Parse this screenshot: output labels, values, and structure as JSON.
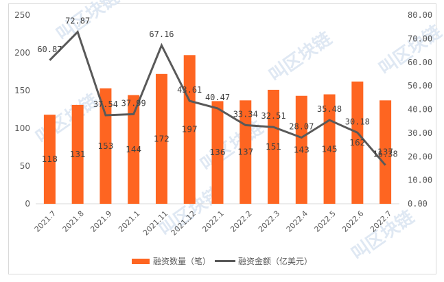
{
  "chart_data": {
    "type": "bar+line",
    "title": "",
    "categories": [
      "2021.7",
      "2021.8",
      "2021.9",
      "2021.1",
      "2021.11",
      "2021.12",
      "2022.1",
      "2022.2",
      "2022.3",
      "2022.4",
      "2022.5",
      "2022.6",
      "2022.7"
    ],
    "series": [
      {
        "name": "融资数量（笔）",
        "type": "bar",
        "axis": "left",
        "color": "#fe6521",
        "values": [
          118,
          131,
          153,
          144,
          172,
          197,
          136,
          137,
          151,
          143,
          145,
          162,
          137
        ]
      },
      {
        "name": "融资金额（亿美元）",
        "type": "line",
        "axis": "right",
        "color": "#595959",
        "values": [
          60.87,
          72.87,
          37.54,
          37.99,
          67.16,
          43.61,
          40.47,
          33.34,
          32.51,
          28.07,
          35.48,
          30.18,
          16.38
        ]
      }
    ],
    "left_axis": {
      "ylim": [
        0,
        250
      ],
      "ticks": [
        "0",
        "50",
        "100",
        "150",
        "200",
        "250"
      ]
    },
    "right_axis": {
      "ylim": [
        0,
        80
      ],
      "ticks": [
        "0.00",
        "10.00",
        "20.00",
        "30.00",
        "40.00",
        "50.00",
        "60.00",
        "70.00",
        "80.00"
      ]
    },
    "xlabel": "",
    "ylabel": "",
    "grid": false,
    "legend_position": "bottom"
  },
  "legend": {
    "bar_label": "融资数量（笔）",
    "line_label": "融资金额（亿美元）"
  },
  "watermark": {
    "text": "叫区块链"
  }
}
